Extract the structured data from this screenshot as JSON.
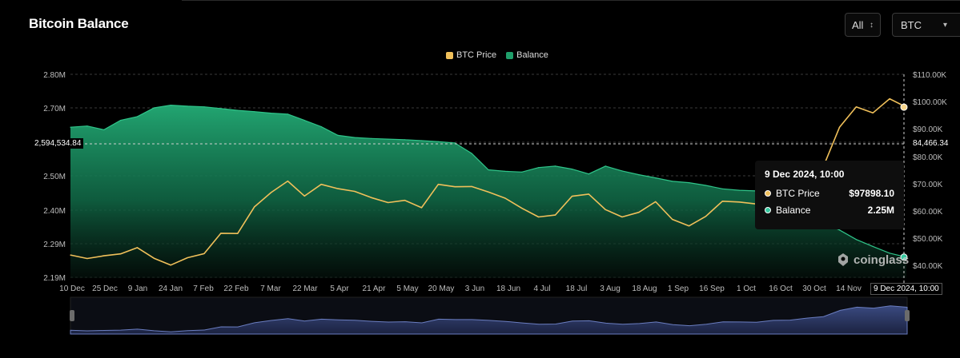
{
  "header": {
    "title": "Bitcoin Balance",
    "range_select": "All",
    "coin_select": "BTC"
  },
  "legend": [
    {
      "label": "BTC Price",
      "color": "#f0c05a"
    },
    {
      "label": "Balance",
      "color": "#1f9e6a"
    }
  ],
  "crosshair": {
    "left_label": "2,594,534.84",
    "right_label": "84,466.34",
    "date_label": "9 Dec 2024, 10:00"
  },
  "tooltip": {
    "title": "9 Dec 2024, 10:00",
    "rows": [
      {
        "label": "BTC Price",
        "value": "$97898.10",
        "color": "#f0c05a"
      },
      {
        "label": "Balance",
        "value": "2.25M",
        "color": "#37c9a0"
      }
    ]
  },
  "watermark": "coinglass",
  "chart_data": {
    "type": "area",
    "title": "Bitcoin Balance",
    "left_axis": {
      "ticks": [
        "2.80M",
        "2.70M",
        "2.59M",
        "2.50M",
        "2.40M",
        "2.29M",
        "2.19M"
      ],
      "tick_values": [
        2800000,
        2700000,
        2590000,
        2500000,
        2400000,
        2290000,
        2190000
      ],
      "range": [
        2190000,
        2800000
      ]
    },
    "right_axis": {
      "ticks": [
        "$110.00K",
        "$100.00K",
        "$90.00K",
        "$80.00K",
        "$70.00K",
        "$60.00K",
        "$50.00K",
        "$40.00K"
      ],
      "tick_values": [
        110000,
        100000,
        90000,
        80000,
        70000,
        60000,
        50000,
        40000
      ],
      "range": [
        35000,
        110000
      ]
    },
    "x_ticks": [
      "10 Dec",
      "25 Dec",
      "9 Jan",
      "24 Jan",
      "7 Feb",
      "22 Feb",
      "7 Mar",
      "22 Mar",
      "5 Apr",
      "21 Apr",
      "5 May",
      "20 May",
      "3 Jun",
      "18 Jun",
      "4 Jul",
      "18 Jul",
      "3 Aug",
      "18 Aug",
      "1 Sep",
      "16 Sep",
      "1 Oct",
      "16 Oct",
      "30 Oct",
      "14 Nov",
      "9 Dec 2024, 10:00"
    ],
    "grid": true,
    "series": [
      {
        "name": "Balance",
        "type": "area",
        "axis": "left",
        "color": "#1f9e6a",
        "x": [
          "10 Dec",
          "17 Dec",
          "25 Dec",
          "1 Jan",
          "9 Jan",
          "16 Jan",
          "24 Jan",
          "31 Jan",
          "7 Feb",
          "15 Feb",
          "22 Feb",
          "29 Feb",
          "7 Mar",
          "14 Mar",
          "22 Mar",
          "29 Mar",
          "5 Apr",
          "13 Apr",
          "21 Apr",
          "28 Apr",
          "5 May",
          "12 May",
          "20 May",
          "27 May",
          "3 Jun",
          "10 Jun",
          "18 Jun",
          "25 Jun",
          "4 Jul",
          "11 Jul",
          "18 Jul",
          "25 Jul",
          "3 Aug",
          "10 Aug",
          "18 Aug",
          "25 Aug",
          "1 Sep",
          "8 Sep",
          "16 Sep",
          "23 Sep",
          "1 Oct",
          "8 Oct",
          "16 Oct",
          "23 Oct",
          "30 Oct",
          "7 Nov",
          "14 Nov",
          "21 Nov",
          "28 Nov",
          "4 Dec",
          "9 Dec"
        ],
        "values": [
          2638000,
          2642000,
          2630000,
          2660000,
          2672000,
          2700000,
          2708000,
          2705000,
          2703000,
          2698000,
          2692000,
          2688000,
          2683000,
          2680000,
          2660000,
          2640000,
          2612000,
          2605000,
          2602000,
          2600000,
          2598000,
          2595000,
          2592000,
          2588000,
          2560000,
          2516000,
          2512000,
          2510000,
          2522000,
          2526000,
          2518000,
          2505000,
          2526000,
          2513000,
          2503000,
          2494000,
          2484000,
          2480000,
          2472000,
          2462000,
          2458000,
          2456000,
          2453000,
          2445000,
          2420000,
          2360000,
          2335000,
          2304000,
          2282000,
          2262000,
          2250000
        ]
      },
      {
        "name": "BTC Price",
        "type": "line",
        "axis": "right",
        "color": "#f0c05a",
        "x": [
          "10 Dec",
          "17 Dec",
          "25 Dec",
          "1 Jan",
          "9 Jan",
          "16 Jan",
          "24 Jan",
          "31 Jan",
          "7 Feb",
          "15 Feb",
          "22 Feb",
          "29 Feb",
          "7 Mar",
          "14 Mar",
          "22 Mar",
          "29 Mar",
          "5 Apr",
          "13 Apr",
          "21 Apr",
          "28 Apr",
          "5 May",
          "12 May",
          "20 May",
          "27 May",
          "3 Jun",
          "10 Jun",
          "18 Jun",
          "25 Jun",
          "4 Jul",
          "11 Jul",
          "18 Jul",
          "25 Jul",
          "3 Aug",
          "10 Aug",
          "18 Aug",
          "25 Aug",
          "1 Sep",
          "8 Sep",
          "16 Sep",
          "23 Sep",
          "1 Oct",
          "8 Oct",
          "16 Oct",
          "23 Oct",
          "30 Oct",
          "7 Nov",
          "14 Nov",
          "21 Nov",
          "28 Nov",
          "4 Dec",
          "9 Dec"
        ],
        "values": [
          43800,
          42500,
          43500,
          44200,
          46500,
          42600,
          40100,
          42800,
          44300,
          51800,
          51700,
          61500,
          66800,
          71000,
          65500,
          69800,
          68200,
          67200,
          64900,
          63100,
          63900,
          61200,
          69800,
          68900,
          69000,
          67000,
          64700,
          61000,
          57800,
          58500,
          65400,
          66200,
          60500,
          57800,
          59500,
          63400,
          56900,
          54500,
          58000,
          63600,
          63300,
          62600,
          67000,
          67600,
          72300,
          75800,
          90500,
          98000,
          95800,
          101000,
          97898.1
        ]
      }
    ]
  }
}
